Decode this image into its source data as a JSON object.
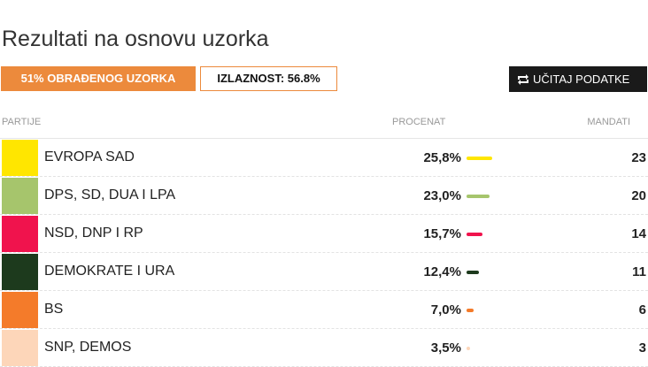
{
  "header": {
    "title": "Rezultati na osnovu uzorka",
    "processed_badge": "51% OBRAĐENOG UZORKA",
    "turnout_badge": "IZLAZNOST: 56.8%",
    "load_button": "UČITAJ PODATKE"
  },
  "table": {
    "columns": [
      "PARTIJE",
      "PROCENAT",
      "MANDATI"
    ],
    "rows": [
      {
        "party": "EVROPA SAD",
        "color": "#ffe600",
        "percent": {
          "value": 25.8,
          "label": "25,8%"
        },
        "seats": 23
      },
      {
        "party": "DPS, SD, DUA I LPA",
        "color": "#a6c56c",
        "percent": {
          "value": 23.0,
          "label": "23,0%"
        },
        "seats": 20
      },
      {
        "party": "NSD, DNP I RP",
        "color": "#f0134d",
        "percent": {
          "value": 15.7,
          "label": "15,7%"
        },
        "seats": 14
      },
      {
        "party": "DEMOKRATE I URA",
        "color": "#1d3a1d",
        "percent": {
          "value": 12.4,
          "label": "12,4%"
        },
        "seats": 11
      },
      {
        "party": "BS",
        "color": "#f47b2a",
        "percent": {
          "value": 7.0,
          "label": "7,0%"
        },
        "seats": 6
      },
      {
        "party": "SNP, DEMOS",
        "color": "#fdd6b9",
        "percent": {
          "value": 3.5,
          "label": "3,5%"
        },
        "seats": 3
      }
    ]
  }
}
